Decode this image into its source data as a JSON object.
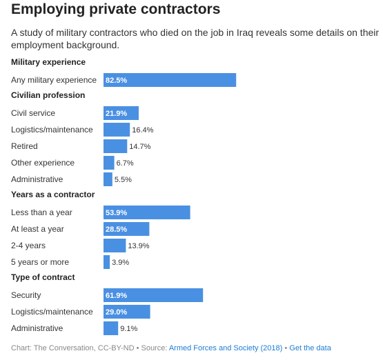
{
  "title": "Employing private contractors",
  "subtitle": "A study of military contractors who died on the job in Iraq reveals some details on their employment background.",
  "footer": {
    "chart_credit": "Chart: The Conversation, CC-BY-ND",
    "separator": " • ",
    "source_prefix": "Source: ",
    "source_link": "Armed Forces and Society (2018)",
    "get_data": "Get the data"
  },
  "colors": {
    "bar": "#4a90e2",
    "label_inside": "#ffffff",
    "label_outside": "#333333"
  },
  "chart_data": {
    "type": "bar",
    "orientation": "horizontal",
    "unit": "%",
    "xlim": [
      0,
      100
    ],
    "grid": false,
    "groups": [
      {
        "name": "Military experience",
        "items": [
          {
            "label": "Any military experience",
            "value": 82.5
          }
        ]
      },
      {
        "name": "Civilian profession",
        "items": [
          {
            "label": "Civil service",
            "value": 21.9
          },
          {
            "label": "Logistics/maintenance",
            "value": 16.4
          },
          {
            "label": "Retired",
            "value": 14.7
          },
          {
            "label": "Other experience",
            "value": 6.7
          },
          {
            "label": "Administrative",
            "value": 5.5
          }
        ]
      },
      {
        "name": "Years as a contractor",
        "items": [
          {
            "label": "Less than a year",
            "value": 53.9
          },
          {
            "label": "At least a year",
            "value": 28.5
          },
          {
            "label": "2-4 years",
            "value": 13.9
          },
          {
            "label": "5 years or more",
            "value": 3.9
          }
        ]
      },
      {
        "name": "Type of contract",
        "items": [
          {
            "label": "Security",
            "value": 61.9
          },
          {
            "label": "Logistics/maintenance",
            "value": 29.0
          },
          {
            "label": "Administrative",
            "value": 9.1
          }
        ]
      }
    ]
  }
}
